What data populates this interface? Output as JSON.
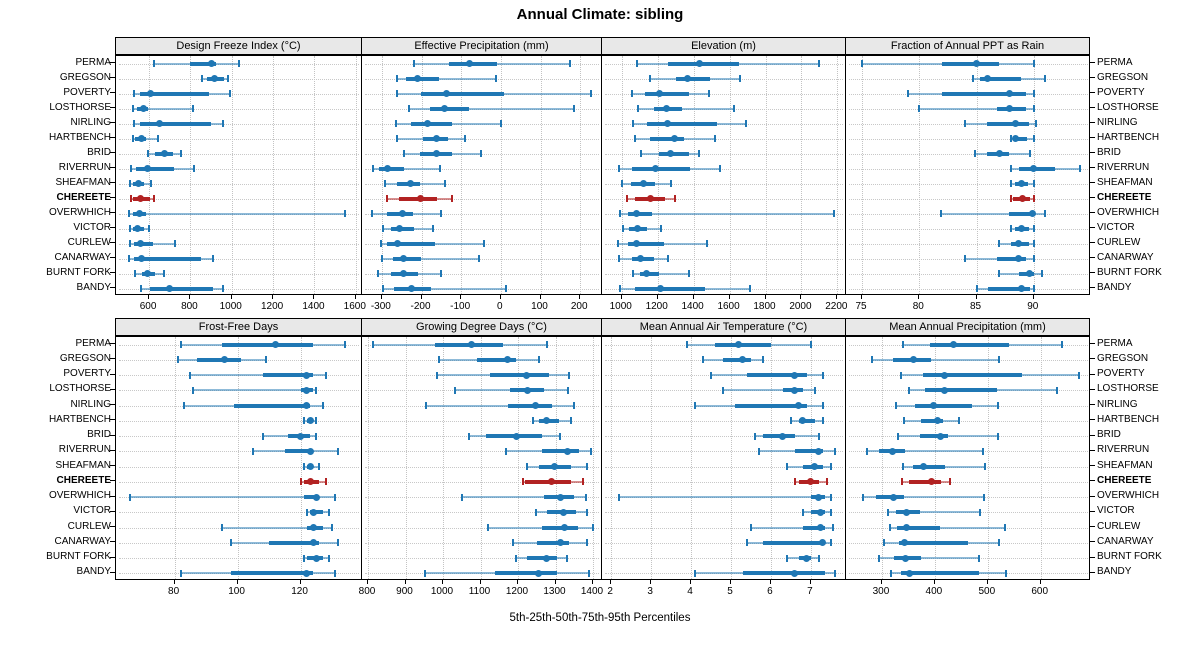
{
  "title": "Annual Climate: sibling",
  "xlabel": "5th-25th-50th-75th-95th Percentiles",
  "chart_data": {
    "type": "dot-interval",
    "subtype": "lattice-percentile-panels",
    "percentile_labels": [
      "5th",
      "25th",
      "50th",
      "75th",
      "95th"
    ],
    "legend_position": "none",
    "grid": "dotted",
    "stations": [
      "PERMA",
      "GREGSON",
      "POVERTY",
      "LOSTHORSE",
      "NIRLING",
      "HARTBENCH",
      "BRID",
      "RIVERRUN",
      "SHEAFMAN",
      "CHEREETE",
      "OVERWHICH",
      "VICTOR",
      "CURLEW",
      "CANARWAY",
      "BURNT FORK",
      "BANDY"
    ],
    "highlight_station": "CHEREETE",
    "colors": {
      "series": "#1f77b4",
      "highlight": "#b22222",
      "strip_bg": "#e8e8e8",
      "gridline": "#c8c8c8"
    },
    "layout": {
      "rows": 2,
      "cols": 4
    },
    "panels": [
      {
        "title": "Design Freeze Index (°C)",
        "ticks": [
          600,
          800,
          1000,
          1200,
          1400,
          1600
        ],
        "domain": [
          440,
          1630
        ],
        "values": [
          [
            624,
            798,
            900,
            924,
            1035
          ],
          [
            856,
            880,
            915,
            961,
            983
          ],
          [
            526,
            558,
            606,
            891,
            991
          ],
          [
            521,
            541,
            574,
            597,
            814
          ],
          [
            529,
            557,
            650,
            899,
            956
          ],
          [
            521,
            534,
            561,
            586,
            645
          ],
          [
            594,
            630,
            677,
            714,
            755
          ],
          [
            513,
            537,
            594,
            722,
            819
          ],
          [
            510,
            521,
            549,
            574,
            610
          ],
          [
            513,
            524,
            558,
            605,
            626
          ],
          [
            505,
            521,
            553,
            586,
            1547
          ],
          [
            510,
            521,
            546,
            577,
            599
          ],
          [
            510,
            526,
            558,
            618,
            726
          ],
          [
            505,
            526,
            565,
            851,
            908
          ],
          [
            534,
            565,
            594,
            630,
            674
          ],
          [
            561,
            606,
            698,
            908,
            956
          ]
        ]
      },
      {
        "title": "Effective Precipitation (mm)",
        "ticks": [
          -300,
          -200,
          -100,
          0,
          100,
          200
        ],
        "domain": [
          -350,
          255
        ],
        "values": [
          [
            -218,
            -130,
            -79,
            -9,
            175
          ],
          [
            -261,
            -239,
            -209,
            -156,
            -13
          ],
          [
            -262,
            -201,
            -137,
            7,
            227
          ],
          [
            -231,
            -179,
            -141,
            -81,
            184
          ],
          [
            -265,
            -227,
            -184,
            -124,
            0
          ],
          [
            -262,
            -197,
            -162,
            -132,
            -90
          ],
          [
            -244,
            -205,
            -162,
            -124,
            -51
          ],
          [
            -322,
            -308,
            -286,
            -244,
            -154
          ],
          [
            -291,
            -261,
            -228,
            -205,
            -141
          ],
          [
            -286,
            -256,
            -203,
            -162,
            -124
          ],
          [
            -325,
            -288,
            -248,
            -222,
            -151
          ],
          [
            -297,
            -278,
            -255,
            -218,
            -171
          ],
          [
            -303,
            -286,
            -261,
            -167,
            -43
          ],
          [
            -299,
            -273,
            -245,
            -201,
            -56
          ],
          [
            -309,
            -278,
            -245,
            -209,
            -151
          ],
          [
            -297,
            -269,
            -225,
            -175,
            13
          ]
        ]
      },
      {
        "title": "Elevation (m)",
        "ticks": [
          1000,
          1200,
          1400,
          1600,
          1800,
          2000,
          2200
        ],
        "domain": [
          890,
          2248
        ],
        "values": [
          [
            1085,
            1260,
            1435,
            1650,
            2100
          ],
          [
            1158,
            1300,
            1365,
            1493,
            1660
          ],
          [
            1056,
            1130,
            1210,
            1372,
            1487
          ],
          [
            1089,
            1182,
            1247,
            1335,
            1623
          ],
          [
            1060,
            1140,
            1257,
            1530,
            1692
          ],
          [
            1074,
            1158,
            1292,
            1344,
            1521
          ],
          [
            1106,
            1205,
            1273,
            1372,
            1428
          ],
          [
            985,
            1056,
            1186,
            1381,
            1549
          ],
          [
            1004,
            1050,
            1121,
            1186,
            1273
          ],
          [
            1028,
            1071,
            1158,
            1242,
            1298
          ],
          [
            991,
            1037,
            1084,
            1167,
            2181
          ],
          [
            1006,
            1043,
            1089,
            1140,
            1218
          ],
          [
            981,
            1032,
            1080,
            1233,
            1474
          ],
          [
            987,
            1056,
            1106,
            1177,
            1260
          ],
          [
            1065,
            1102,
            1140,
            1205,
            1372
          ],
          [
            991,
            1074,
            1214,
            1465,
            1712
          ]
        ]
      },
      {
        "title": "Fraction of Annual PPT as Rain",
        "ticks": [
          75,
          80,
          85,
          90
        ],
        "domain": [
          73.6,
          95
        ],
        "values": [
          [
            75,
            82,
            85,
            87,
            90
          ],
          [
            84.7,
            85.3,
            86,
            88.9,
            91
          ],
          [
            79,
            82,
            87.9,
            89.3,
            90
          ],
          [
            80,
            86.8,
            87.9,
            89.3,
            90
          ],
          [
            84,
            85.9,
            88.4,
            89.6,
            90.2
          ],
          [
            88,
            88.2,
            88.4,
            89.4,
            90
          ],
          [
            84.9,
            85.9,
            87,
            87.8,
            89.7
          ],
          [
            88,
            88.7,
            90,
            91.9,
            94
          ],
          [
            88,
            88.4,
            88.9,
            89.5,
            90
          ],
          [
            88,
            88.2,
            89,
            89.7,
            90
          ],
          [
            81.9,
            87.8,
            89.9,
            90.1,
            91
          ],
          [
            88,
            88.4,
            88.9,
            89.6,
            90
          ],
          [
            87,
            88,
            88.7,
            89.6,
            90
          ],
          [
            84,
            86.8,
            88.7,
            89.3,
            90
          ],
          [
            87,
            88.7,
            89.6,
            90,
            90.7
          ],
          [
            85,
            86,
            88.9,
            89.7,
            90
          ]
        ]
      },
      {
        "title": "Frost-Free Days",
        "ticks": [
          80,
          100,
          120
        ],
        "domain": [
          61.4,
          139.5
        ],
        "values": [
          [
            82,
            95,
            112,
            124,
            134
          ],
          [
            81,
            87,
            96,
            101,
            109
          ],
          [
            85,
            108,
            122,
            124,
            128
          ],
          [
            86,
            120,
            122,
            124,
            125
          ],
          [
            83,
            99,
            122,
            123,
            127
          ],
          [
            121,
            122,
            123,
            124,
            125
          ],
          [
            108,
            116,
            120,
            123,
            125
          ],
          [
            105,
            115,
            123,
            124,
            132
          ],
          [
            121,
            122,
            123,
            124,
            126
          ],
          [
            120,
            121,
            123,
            126,
            128
          ],
          [
            66,
            121,
            125,
            126,
            131
          ],
          [
            122,
            123,
            124,
            127,
            129
          ],
          [
            95,
            122,
            124,
            127,
            130
          ],
          [
            98,
            110,
            124,
            126,
            132
          ],
          [
            121,
            122,
            125,
            127,
            129
          ],
          [
            82,
            98,
            122,
            124,
            131
          ]
        ]
      },
      {
        "title": "Growing Degree Days (°C)",
        "ticks": [
          800,
          900,
          1000,
          1100,
          1200,
          1300,
          1400
        ],
        "domain": [
          784,
          1424
        ],
        "values": [
          [
            814,
            978,
            1075,
            1160,
            1277
          ],
          [
            989,
            1090,
            1171,
            1195,
            1255
          ],
          [
            983,
            1124,
            1223,
            1282,
            1336
          ],
          [
            1032,
            1178,
            1225,
            1268,
            1332
          ],
          [
            955,
            1174,
            1246,
            1291,
            1350
          ],
          [
            1240,
            1255,
            1276,
            1309,
            1341
          ],
          [
            1070,
            1115,
            1195,
            1264,
            1313
          ],
          [
            1168,
            1264,
            1332,
            1363,
            1395
          ],
          [
            1223,
            1255,
            1297,
            1341,
            1384
          ],
          [
            1213,
            1219,
            1288,
            1341,
            1372
          ],
          [
            1050,
            1268,
            1312,
            1350,
            1381
          ],
          [
            1249,
            1277,
            1321,
            1354,
            1384
          ],
          [
            1120,
            1264,
            1324,
            1359,
            1399
          ],
          [
            1186,
            1250,
            1312,
            1336,
            1384
          ],
          [
            1195,
            1225,
            1276,
            1304,
            1330
          ],
          [
            951,
            1138,
            1255,
            1304,
            1390
          ]
        ]
      },
      {
        "title": "Mean Annual Air Temperature (°C)",
        "ticks": [
          2,
          3,
          4,
          5,
          6,
          7
        ],
        "domain": [
          1.77,
          7.88
        ],
        "values": [
          [
            3.9,
            4.6,
            5.2,
            6.0,
            7.0
          ],
          [
            4.3,
            4.8,
            5.3,
            5.5,
            5.8
          ],
          [
            4.5,
            5.4,
            6.6,
            6.9,
            7.3
          ],
          [
            4.8,
            6.3,
            6.6,
            6.8,
            7.1
          ],
          [
            4.1,
            5.1,
            6.7,
            6.9,
            7.3
          ],
          [
            6.5,
            6.7,
            6.8,
            7.1,
            7.3
          ],
          [
            5.6,
            5.8,
            6.3,
            6.6,
            7.2
          ],
          [
            5.7,
            6.6,
            7.2,
            7.3,
            7.6
          ],
          [
            6.4,
            6.8,
            7.1,
            7.3,
            7.5
          ],
          [
            6.6,
            6.7,
            7.0,
            7.2,
            7.4
          ],
          [
            2.2,
            7.0,
            7.2,
            7.35,
            7.5
          ],
          [
            6.8,
            7.0,
            7.25,
            7.35,
            7.5
          ],
          [
            5.5,
            6.8,
            7.25,
            7.35,
            7.55
          ],
          [
            5.4,
            5.8,
            7.3,
            7.35,
            7.5
          ],
          [
            6.4,
            6.7,
            6.9,
            7.0,
            7.2
          ],
          [
            4.1,
            5.3,
            6.6,
            7.35,
            7.6
          ]
        ]
      },
      {
        "title": "Mean Annual Precipitation (mm)",
        "ticks": [
          300,
          400,
          500,
          600
        ],
        "domain": [
          232,
          695
        ],
        "values": [
          [
            340,
            390,
            435,
            540,
            640
          ],
          [
            282,
            320,
            360,
            392,
            522
          ],
          [
            336,
            378,
            418,
            564,
            673
          ],
          [
            352,
            381,
            419,
            517,
            630
          ],
          [
            327,
            362,
            398,
            470,
            520
          ],
          [
            341,
            374,
            405,
            416,
            445
          ],
          [
            330,
            371,
            411,
            425,
            519
          ],
          [
            271,
            295,
            320,
            343,
            491
          ],
          [
            339,
            358,
            378,
            419,
            495
          ],
          [
            337,
            352,
            393,
            412,
            428
          ],
          [
            265,
            289,
            322,
            341,
            492
          ],
          [
            311,
            327,
            346,
            371,
            486
          ],
          [
            316,
            329,
            347,
            410,
            533
          ],
          [
            304,
            333,
            343,
            463,
            522
          ],
          [
            295,
            322,
            344,
            374,
            484
          ],
          [
            317,
            335,
            352,
            484,
            534
          ]
        ]
      }
    ]
  }
}
